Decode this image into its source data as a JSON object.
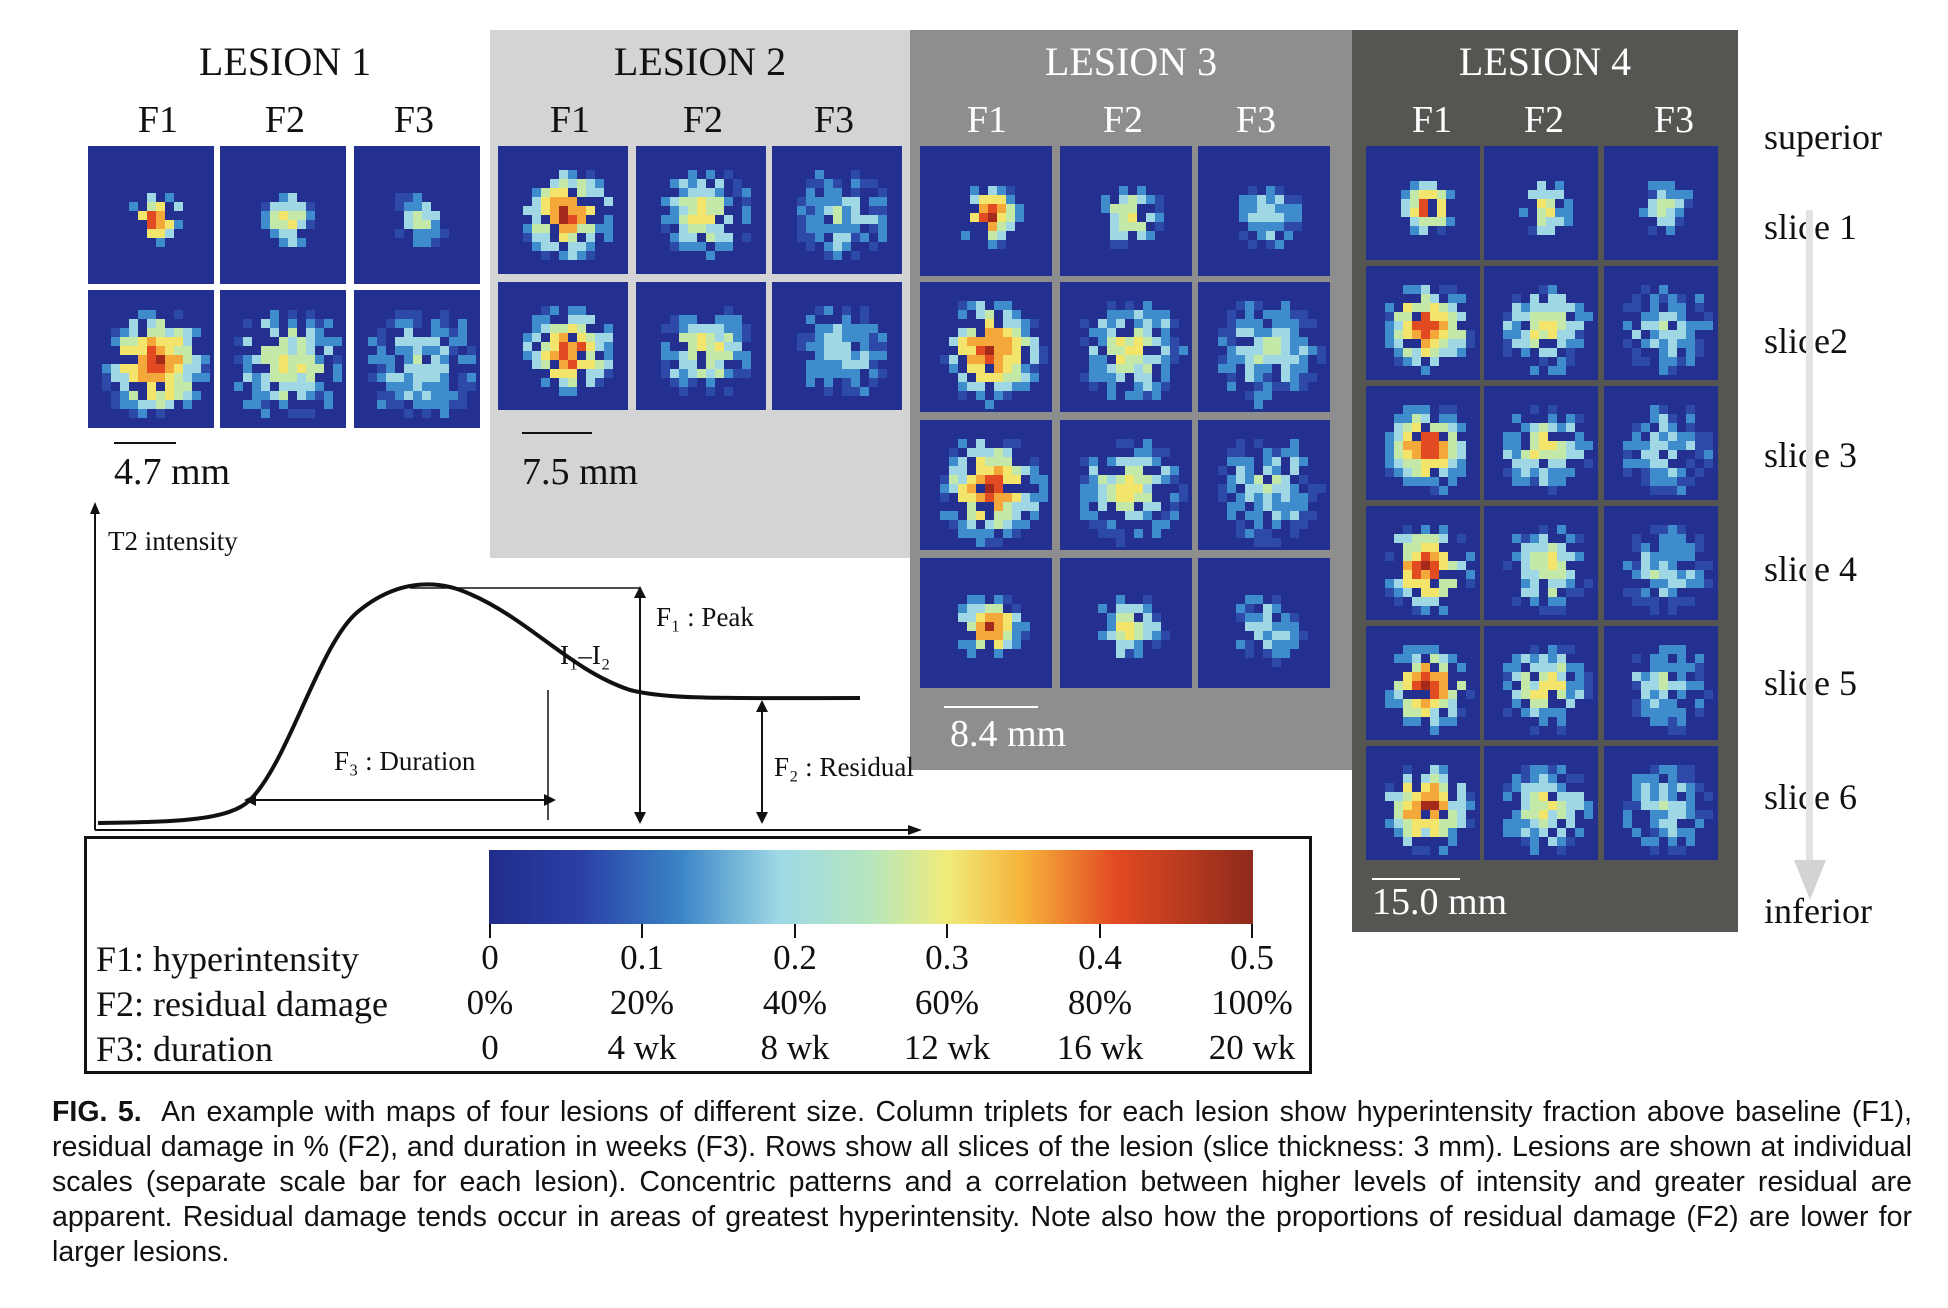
{
  "lesions": [
    {
      "title": "LESION 1",
      "cols": [
        "F1",
        "F2",
        "F3"
      ],
      "scale": "4.7 mm"
    },
    {
      "title": "LESION 2",
      "cols": [
        "F1",
        "F2",
        "F3"
      ],
      "scale": "7.5 mm"
    },
    {
      "title": "LESION 3",
      "cols": [
        "F1",
        "F2",
        "F3"
      ],
      "scale": "8.4 mm"
    },
    {
      "title": "LESION 4",
      "cols": [
        "F1",
        "F2",
        "F3"
      ],
      "scale": "15.0 mm"
    }
  ],
  "slices": {
    "top": "superior",
    "labels": [
      "slice 1",
      "slice2",
      "slice 3",
      "slice 4",
      "slice 5",
      "slice 6"
    ],
    "bottom": "inferior"
  },
  "curve": {
    "ylabel": "T2 intensity",
    "peak": "F₁ : Peak",
    "diff": "I₁–I₂",
    "duration": "F₃ : Duration",
    "residual": "F₂ : Residual"
  },
  "legend": {
    "rows": [
      "F1: hyperintensity",
      "F2: residual damage",
      "F3: duration"
    ],
    "ticks_f1": [
      "0",
      "0.1",
      "0.2",
      "0.3",
      "0.4",
      "0.5"
    ],
    "ticks_f2": [
      "0%",
      "20%",
      "40%",
      "60%",
      "80%",
      "100%"
    ],
    "ticks_f3": [
      "0",
      "4 wk",
      "8 wk",
      "12 wk",
      "16 wk",
      "20 wk"
    ],
    "colormap": "jet"
  },
  "caption": {
    "label": "FIG. 5.",
    "text": "An example with maps of four lesions of different size. Column triplets for each lesion show hyperintensity fraction above baseline (F1), residual damage in % (F2), and duration in weeks (F3). Rows show all slices of the lesion (slice thickness: 3 mm). Lesions are shown at individual scales (separate scale bar for each lesion). Concentric patterns and a correlation between higher levels of intensity and greater residual are apparent. Residual damage tends occur in areas of greatest hyperintensity. Note also how the proportions of residual damage (F2) are lower for larger lesions."
  },
  "colors": {
    "lesion2_bg": "#d4d4d4",
    "lesion3_bg": "#8e8e8e",
    "lesion4_bg": "#555652",
    "tile_bg": "#23308f"
  }
}
